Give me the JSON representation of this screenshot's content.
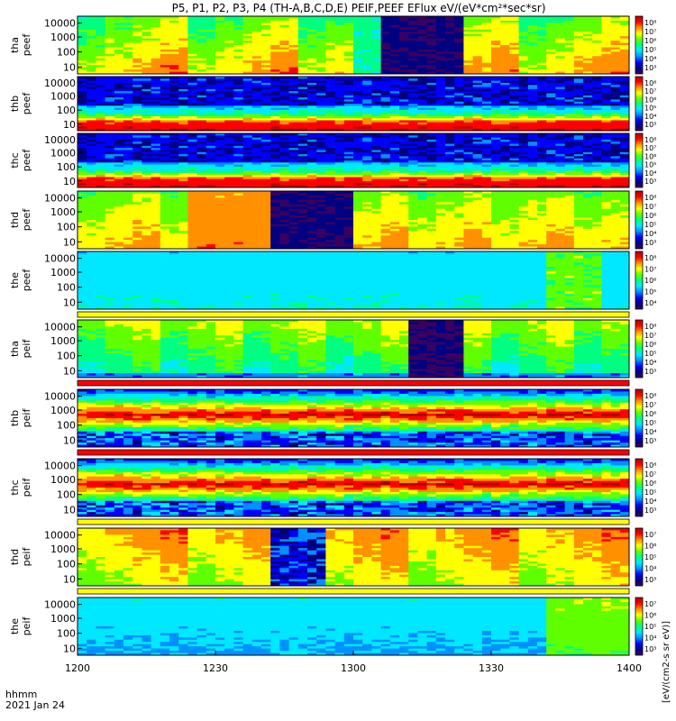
{
  "title": "P5, P1, P2, P3, P4 (TH-A,B,C,D,E) PEIF,PEEF EFlux eV/(eV*cm²*sec*sr)",
  "time_axis": {
    "label_line1": "hhmm",
    "label_line2": "2021 Jan 24",
    "ticks": [
      "1200",
      "1230",
      "1300",
      "1330",
      "1400"
    ]
  },
  "colorbar_units": "[eV/(cm2-s sr eV)]",
  "colormap": [
    "#3a0060",
    "#000080",
    "#0000ff",
    "#0090ff",
    "#00e8ff",
    "#00ff80",
    "#60ff00",
    "#ffff00",
    "#ff9000",
    "#ff0000",
    "#b00000"
  ],
  "chart_data": [
    {
      "type": "heatmap",
      "probe": "tha",
      "ylabel_line1": "tha",
      "ylabel_line2": "peef",
      "yticks": [
        "10000",
        "1000",
        "100",
        "10"
      ],
      "cb_ticks": [
        "10⁸",
        "10⁷",
        "10⁶",
        "10⁵",
        "10⁴",
        "10³"
      ],
      "profile": "peef_sheath",
      "x_range": [
        "1200",
        "1400"
      ],
      "y_range_eV": [
        7,
        30000
      ],
      "log_y": true
    },
    {
      "type": "heatmap",
      "probe": "thb",
      "ylabel_line1": "thb",
      "ylabel_line2": "peef",
      "yticks": [
        "10000",
        "1000",
        "100",
        "10"
      ],
      "cb_ticks": [
        "10⁸",
        "10⁷",
        "10⁶",
        "10⁵",
        "10⁴",
        "10³"
      ],
      "profile": "peef_sw",
      "x_range": [
        "1200",
        "1400"
      ],
      "y_range_eV": [
        7,
        30000
      ],
      "log_y": true
    },
    {
      "type": "heatmap",
      "probe": "thc",
      "ylabel_line1": "thc",
      "ylabel_line2": "peef",
      "yticks": [
        "10000",
        "1000",
        "100",
        "10"
      ],
      "cb_ticks": [
        "10⁸",
        "10⁷",
        "10⁶",
        "10⁵",
        "10⁴",
        "10³"
      ],
      "profile": "peef_sw",
      "x_range": [
        "1200",
        "1400"
      ],
      "y_range_eV": [
        7,
        30000
      ],
      "log_y": true
    },
    {
      "type": "heatmap",
      "probe": "thd",
      "ylabel_line1": "thd",
      "ylabel_line2": "peef",
      "yticks": [
        "10000",
        "1000",
        "100",
        "10"
      ],
      "cb_ticks": [
        "10⁸",
        "10⁷",
        "10⁶",
        "10⁵",
        "10⁴",
        "10³"
      ],
      "profile": "peef_sheath2",
      "x_range": [
        "1200",
        "1400"
      ],
      "y_range_eV": [
        7,
        30000
      ],
      "log_y": true
    },
    {
      "type": "heatmap",
      "probe": "the",
      "ylabel_line1": "the",
      "ylabel_line2": "peef",
      "yticks": [
        "10000",
        "1000",
        "100",
        "10"
      ],
      "cb_ticks": [
        "10⁸",
        "10⁷",
        "10⁶",
        "10⁵",
        "10⁴"
      ],
      "profile": "peef_sheet",
      "x_range": [
        "1200",
        "1400"
      ],
      "y_range_eV": [
        7,
        30000
      ],
      "log_y": true
    },
    {
      "type": "heatmap",
      "probe": "tha",
      "ylabel_line1": "tha",
      "ylabel_line2": "peif",
      "yticks": [
        "10000",
        "1000",
        "100",
        "10"
      ],
      "cb_ticks": [
        "10⁸",
        "10⁷",
        "10⁶",
        "10⁵",
        "10⁴",
        "10³"
      ],
      "profile": "peif_sheath",
      "x_range": [
        "1200",
        "1400"
      ],
      "y_range_eV": [
        7,
        30000
      ],
      "log_y": true
    },
    {
      "type": "heatmap",
      "probe": "thb",
      "ylabel_line1": "thb",
      "ylabel_line2": "peif",
      "yticks": [
        "10000",
        "1000",
        "100",
        "10"
      ],
      "cb_ticks": [
        "10⁸",
        "10⁷",
        "10⁶",
        "10⁵",
        "10⁴",
        "10³"
      ],
      "profile": "peif_sw",
      "x_range": [
        "1200",
        "1400"
      ],
      "y_range_eV": [
        7,
        30000
      ],
      "log_y": true
    },
    {
      "type": "heatmap",
      "probe": "thc",
      "ylabel_line1": "thc",
      "ylabel_line2": "peif",
      "yticks": [
        "10000",
        "1000",
        "100",
        "10"
      ],
      "cb_ticks": [
        "10⁸",
        "10⁷",
        "10⁶",
        "10⁵",
        "10⁴",
        "10³"
      ],
      "profile": "peif_sw",
      "x_range": [
        "1200",
        "1400"
      ],
      "y_range_eV": [
        7,
        30000
      ],
      "log_y": true
    },
    {
      "type": "heatmap",
      "probe": "thd",
      "ylabel_line1": "thd",
      "ylabel_line2": "peif",
      "yticks": [
        "10000",
        "1000",
        "100",
        "10"
      ],
      "cb_ticks": [
        "10⁷",
        "10⁶",
        "10⁵",
        "10⁴",
        "10³"
      ],
      "profile": "peif_sheath2",
      "x_range": [
        "1200",
        "1400"
      ],
      "y_range_eV": [
        7,
        30000
      ],
      "log_y": true
    },
    {
      "type": "heatmap",
      "probe": "the",
      "ylabel_line1": "the",
      "ylabel_line2": "peif",
      "yticks": [
        "10000",
        "1000",
        "100",
        "10"
      ],
      "cb_ticks": [
        "10⁷",
        "10⁶",
        "10⁵",
        "10⁴",
        "10³"
      ],
      "profile": "peif_sheet",
      "x_range": [
        "1200",
        "1400"
      ],
      "y_range_eV": [
        7,
        30000
      ],
      "log_y": true
    }
  ]
}
